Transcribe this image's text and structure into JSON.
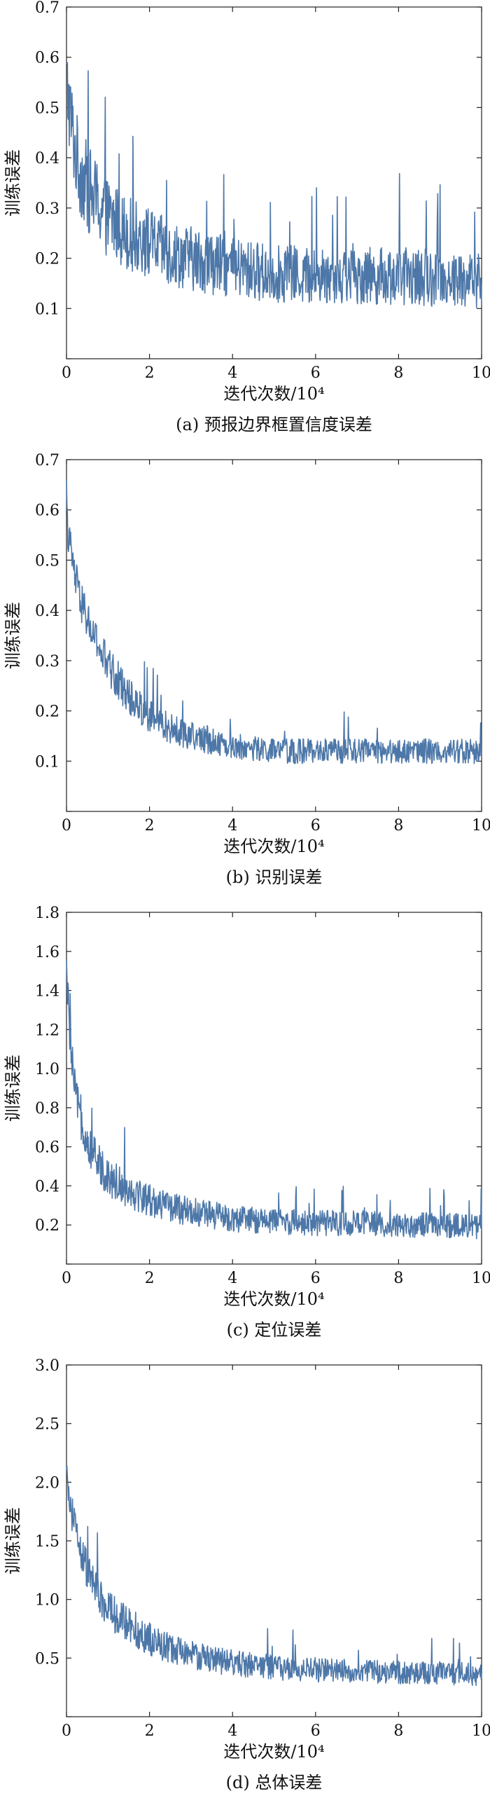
{
  "chart_data": [
    {
      "type": "line",
      "caption": "(a) 预报边界框置信度误差",
      "xlabel": "迭代次数/10⁴",
      "ylabel": "训练误差",
      "xlim": [
        0,
        10
      ],
      "ylim": [
        0,
        0.7
      ],
      "xticks": [
        "0",
        "2",
        "4",
        "6",
        "8",
        "10"
      ],
      "yticks": [
        "0",
        "0.1",
        "0.2",
        "0.3",
        "0.4",
        "0.5",
        "0.6",
        "0.7"
      ],
      "grid": false,
      "series": [
        {
          "color": "#4d77a8",
          "x": [
            0,
            0.1,
            0.2,
            0.3,
            0.5,
            0.75,
            1.0,
            1.5,
            2.0,
            2.5,
            3.0,
            3.5,
            4.0,
            5.0,
            6.0,
            7.0,
            8.0,
            9.0,
            10.0
          ],
          "y": [
            0.55,
            0.48,
            0.42,
            0.38,
            0.34,
            0.31,
            0.28,
            0.25,
            0.23,
            0.21,
            0.2,
            0.19,
            0.18,
            0.17,
            0.165,
            0.165,
            0.165,
            0.16,
            0.155
          ],
          "noise": 0.045
        }
      ]
    },
    {
      "type": "line",
      "caption": "(b) 识别误差",
      "xlabel": "迭代次数/10⁴",
      "ylabel": "训练误差",
      "xlim": [
        0,
        10
      ],
      "ylim": [
        0,
        0.7
      ],
      "xticks": [
        "0",
        "2",
        "4",
        "6",
        "8",
        "10"
      ],
      "yticks": [
        "0",
        "0.1",
        "0.2",
        "0.3",
        "0.4",
        "0.5",
        "0.6",
        "0.7"
      ],
      "grid": false,
      "series": [
        {
          "color": "#4d77a8",
          "x": [
            0,
            0.1,
            0.2,
            0.3,
            0.5,
            0.75,
            1.0,
            1.5,
            2.0,
            2.5,
            3.0,
            3.5,
            4.0,
            5.0,
            6.0,
            7.0,
            8.0,
            9.0,
            10.0
          ],
          "y": [
            0.58,
            0.52,
            0.47,
            0.43,
            0.38,
            0.33,
            0.29,
            0.23,
            0.19,
            0.165,
            0.15,
            0.14,
            0.13,
            0.12,
            0.12,
            0.12,
            0.12,
            0.12,
            0.12
          ],
          "noise": 0.02
        }
      ]
    },
    {
      "type": "line",
      "caption": "(c) 定位误差",
      "xlabel": "迭代次数/10⁴",
      "ylabel": "训练误差",
      "xlim": [
        0,
        10
      ],
      "ylim": [
        0,
        1.8
      ],
      "xticks": [
        "0",
        "2",
        "4",
        "6",
        "8",
        "10"
      ],
      "yticks": [
        "0",
        "0.2",
        "0.4",
        "0.6",
        "0.8",
        "1.0",
        "1.2",
        "1.4",
        "1.6",
        "1.8"
      ],
      "grid": false,
      "series": [
        {
          "color": "#4d77a8",
          "x": [
            0,
            0.1,
            0.2,
            0.3,
            0.5,
            0.75,
            1.0,
            1.5,
            2.0,
            2.5,
            3.0,
            3.5,
            4.0,
            5.0,
            6.0,
            7.0,
            8.0,
            9.0,
            10.0
          ],
          "y": [
            1.5,
            1.1,
            0.9,
            0.78,
            0.62,
            0.52,
            0.45,
            0.38,
            0.33,
            0.29,
            0.27,
            0.25,
            0.23,
            0.22,
            0.21,
            0.21,
            0.2,
            0.2,
            0.19
          ],
          "noise": 0.05
        }
      ]
    },
    {
      "type": "line",
      "caption": "(d) 总体误差",
      "xlabel": "迭代次数/10⁴",
      "ylabel": "训练误差",
      "xlim": [
        0,
        10
      ],
      "ylim": [
        0,
        3.0
      ],
      "xticks": [
        "0",
        "2",
        "4",
        "6",
        "8",
        "10"
      ],
      "yticks": [
        "0",
        "0.5",
        "1.0",
        "1.5",
        "2.0",
        "2.5",
        "3.0"
      ],
      "grid": false,
      "series": [
        {
          "color": "#4d77a8",
          "x": [
            0,
            0.1,
            0.2,
            0.3,
            0.5,
            0.75,
            1.0,
            1.5,
            2.0,
            2.5,
            3.0,
            3.5,
            4.0,
            5.0,
            6.0,
            7.0,
            8.0,
            9.0,
            10.0
          ],
          "y": [
            2.0,
            1.8,
            1.6,
            1.45,
            1.25,
            1.05,
            0.92,
            0.78,
            0.66,
            0.58,
            0.53,
            0.49,
            0.46,
            0.42,
            0.4,
            0.39,
            0.38,
            0.37,
            0.36
          ],
          "noise": 0.08
        }
      ]
    }
  ]
}
